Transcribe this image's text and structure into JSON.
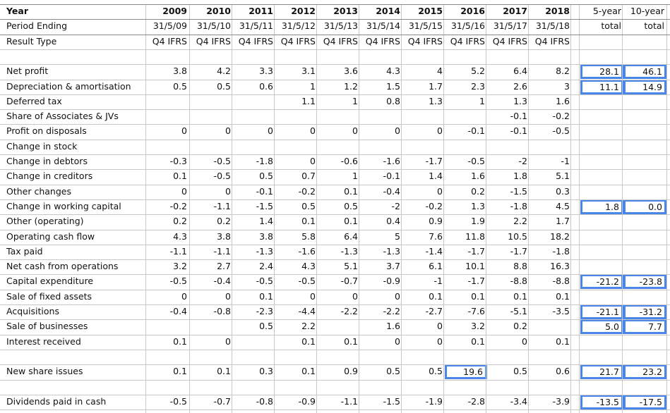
{
  "table": {
    "header": {
      "year": {
        "label": "Year",
        "years": [
          "2009",
          "2010",
          "2011",
          "2012",
          "2013",
          "2014",
          "2015",
          "2016",
          "2017",
          "2018"
        ],
        "totals": [
          "5-year",
          "10-year"
        ]
      },
      "period": {
        "label": "Period Ending",
        "values": [
          "31/5/09",
          "31/5/10",
          "31/5/11",
          "31/5/12",
          "31/5/13",
          "31/5/14",
          "31/5/15",
          "31/5/16",
          "31/5/17",
          "31/5/18"
        ],
        "totals": [
          "total",
          "total"
        ]
      },
      "result_type": {
        "label": "Result Type",
        "values": [
          "Q4 IFRS",
          "Q4 IFRS",
          "Q4 IFRS",
          "Q4 IFRS",
          "Q4 IFRS",
          "Q4 IFRS",
          "Q4 IFRS",
          "Q4 IFRS",
          "Q4 IFRS",
          "Q4 IFRS"
        ]
      }
    },
    "rows": [
      {
        "label": "",
        "values": [
          "",
          "",
          "",
          "",
          "",
          "",
          "",
          "",
          "",
          ""
        ],
        "totals": [
          "",
          ""
        ]
      },
      {
        "label": "Net profit",
        "values": [
          "3.8",
          "4.2",
          "3.3",
          "3.1",
          "3.6",
          "4.3",
          "4",
          "5.2",
          "6.4",
          "8.2"
        ],
        "totals": [
          "28.1",
          "46.1"
        ]
      },
      {
        "label": "Depreciation & amortisation",
        "values": [
          "0.5",
          "0.5",
          "0.6",
          "1",
          "1.2",
          "1.5",
          "1.7",
          "2.3",
          "2.6",
          "3"
        ],
        "totals": [
          "11.1",
          "14.9"
        ]
      },
      {
        "label": "Deferred tax",
        "values": [
          "",
          "",
          "",
          "1.1",
          "1",
          "0.8",
          "1.3",
          "1",
          "1.3",
          "1.6"
        ],
        "totals": [
          "",
          ""
        ]
      },
      {
        "label": "Share of Associates & JVs",
        "values": [
          "",
          "",
          "",
          "",
          "",
          "",
          "",
          "",
          "-0.1",
          "-0.2"
        ],
        "totals": [
          "",
          ""
        ]
      },
      {
        "label": "Profit on disposals",
        "values": [
          "0",
          "0",
          "0",
          "0",
          "0",
          "0",
          "0",
          "-0.1",
          "-0.1",
          "-0.5"
        ],
        "totals": [
          "",
          ""
        ]
      },
      {
        "label": "Change in stock",
        "values": [
          "",
          "",
          "",
          "",
          "",
          "",
          "",
          "",
          "",
          ""
        ],
        "totals": [
          "",
          ""
        ]
      },
      {
        "label": "Change in debtors",
        "values": [
          "-0.3",
          "-0.5",
          "-1.8",
          "0",
          "-0.6",
          "-1.6",
          "-1.7",
          "-0.5",
          "-2",
          "-1"
        ],
        "totals": [
          "",
          ""
        ]
      },
      {
        "label": "Change in creditors",
        "values": [
          "0.1",
          "-0.5",
          "0.5",
          "0.7",
          "1",
          "-0.1",
          "1.4",
          "1.6",
          "1.8",
          "5.1"
        ],
        "totals": [
          "",
          ""
        ]
      },
      {
        "label": "Other changes",
        "values": [
          "0",
          "0",
          "-0.1",
          "-0.2",
          "0.1",
          "-0.4",
          "0",
          "0.2",
          "-1.5",
          "0.3"
        ],
        "totals": [
          "",
          ""
        ]
      },
      {
        "label": "Change in working capital",
        "values": [
          "-0.2",
          "-1.1",
          "-1.5",
          "0.5",
          "0.5",
          "-2",
          "-0.2",
          "1.3",
          "-1.8",
          "4.5"
        ],
        "totals": [
          "1.8",
          "0.0"
        ]
      },
      {
        "label": "Other (operating)",
        "values": [
          "0.2",
          "0.2",
          "1.4",
          "0.1",
          "0.1",
          "0.4",
          "0.9",
          "1.9",
          "2.2",
          "1.7"
        ],
        "totals": [
          "",
          ""
        ]
      },
      {
        "label": "Operating cash flow",
        "values": [
          "4.3",
          "3.8",
          "3.8",
          "5.8",
          "6.4",
          "5",
          "7.6",
          "11.8",
          "10.5",
          "18.2"
        ],
        "totals": [
          "",
          ""
        ]
      },
      {
        "label": "Tax paid",
        "values": [
          "-1.1",
          "-1.1",
          "-1.3",
          "-1.6",
          "-1.3",
          "-1.3",
          "-1.4",
          "-1.7",
          "-1.7",
          "-1.8"
        ],
        "totals": [
          "",
          ""
        ]
      },
      {
        "label": "Net cash from operations",
        "values": [
          "3.2",
          "2.7",
          "2.4",
          "4.3",
          "5.1",
          "3.7",
          "6.1",
          "10.1",
          "8.8",
          "16.3"
        ],
        "totals": [
          "",
          ""
        ]
      },
      {
        "label": "Capital expenditure",
        "values": [
          "-0.5",
          "-0.4",
          "-0.5",
          "-0.5",
          "-0.7",
          "-0.9",
          "-1",
          "-1.7",
          "-8.8",
          "-8.8"
        ],
        "totals": [
          "-21.2",
          "-23.8"
        ]
      },
      {
        "label": "Sale of fixed assets",
        "values": [
          "0",
          "0",
          "0.1",
          "0",
          "0",
          "0",
          "0.1",
          "0.1",
          "0.1",
          "0.1"
        ],
        "totals": [
          "",
          ""
        ]
      },
      {
        "label": "Acquisitions",
        "values": [
          "-0.4",
          "-0.8",
          "-2.3",
          "-4.4",
          "-2.2",
          "-2.2",
          "-2.7",
          "-7.6",
          "-5.1",
          "-3.5"
        ],
        "totals": [
          "-21.1",
          "-31.2"
        ]
      },
      {
        "label": "Sale of businesses",
        "values": [
          "",
          "",
          "0.5",
          "2.2",
          "",
          "1.6",
          "0",
          "3.2",
          "0.2",
          ""
        ],
        "totals": [
          "5.0",
          "7.7"
        ]
      },
      {
        "label": "Interest received",
        "values": [
          "0.1",
          "0",
          "",
          "0.1",
          "0.1",
          "0",
          "0",
          "0.1",
          "0",
          "0.1"
        ],
        "totals": [
          "",
          ""
        ]
      },
      {
        "label": "",
        "values": [
          "",
          "",
          "",
          "",
          "",
          "",
          "",
          "",
          "",
          ""
        ],
        "totals": [
          "",
          ""
        ]
      },
      {
        "label": "New share issues",
        "values": [
          "0.1",
          "0.1",
          "0.3",
          "0.1",
          "0.9",
          "0.5",
          "0.5",
          "19.6",
          "0.5",
          "0.6"
        ],
        "totals": [
          "21.7",
          "23.2"
        ]
      },
      {
        "label": "",
        "values": [
          "",
          "",
          "",
          "",
          "",
          "",
          "",
          "",
          "",
          ""
        ],
        "totals": [
          "",
          ""
        ]
      },
      {
        "label": "Dividends paid in cash",
        "values": [
          "-0.5",
          "-0.7",
          "-0.8",
          "-0.9",
          "-1.1",
          "-1.5",
          "-1.9",
          "-2.8",
          "-3.4",
          "-3.9"
        ],
        "totals": [
          "-13.5",
          "-17.5"
        ]
      }
    ]
  },
  "highlight_color": "#4a86e8"
}
